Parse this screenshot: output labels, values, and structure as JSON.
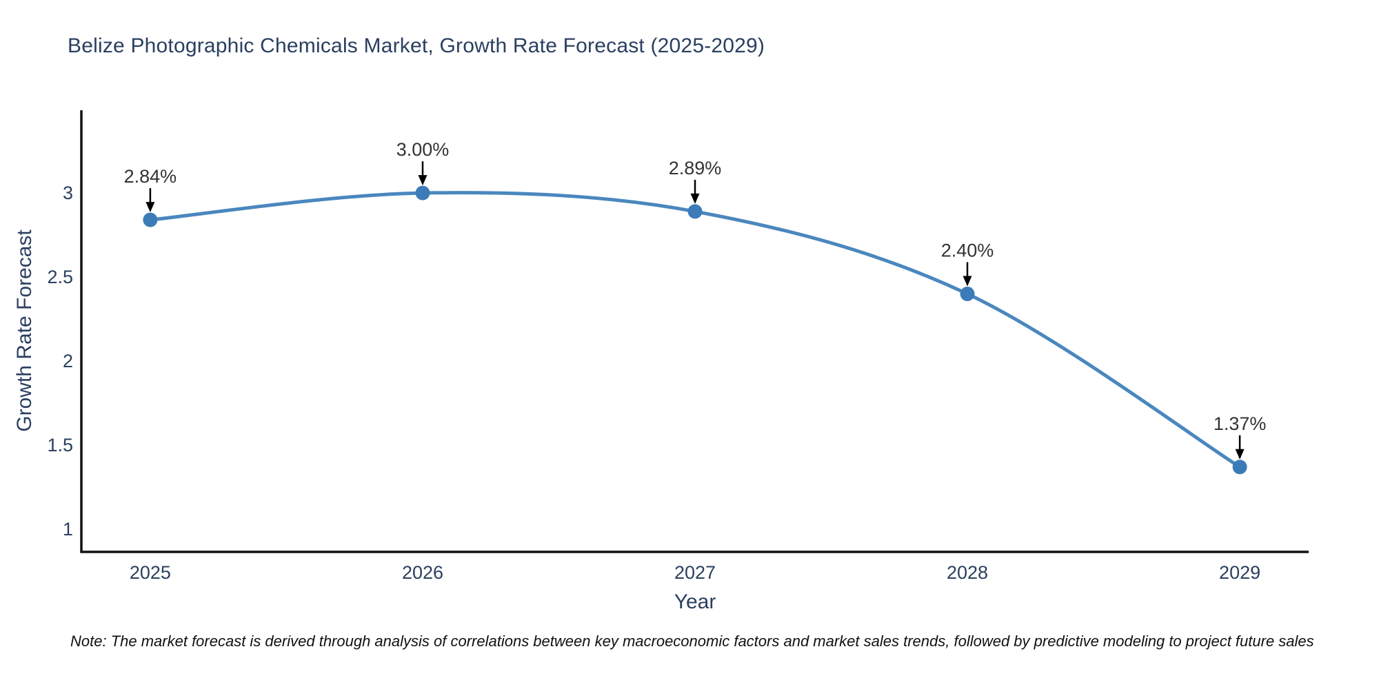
{
  "chart_data": {
    "type": "line",
    "title": "Belize Photographic Chemicals Market, Growth Rate Forecast (2025-2029)",
    "xlabel": "Year",
    "ylabel": "Growth Rate Forecast",
    "x": [
      2025,
      2026,
      2027,
      2028,
      2029
    ],
    "series": [
      {
        "name": "Growth Rate Forecast",
        "values": [
          2.84,
          3.0,
          2.89,
          2.4,
          1.37
        ]
      }
    ],
    "point_labels": [
      "2.84%",
      "3.00%",
      "2.89%",
      "2.40%",
      "1.37%"
    ],
    "xtick_labels": [
      "2025",
      "2026",
      "2027",
      "2028",
      "2029"
    ],
    "yticks": [
      1,
      1.5,
      2,
      2.5,
      3
    ],
    "ytick_labels": [
      "1",
      "1.5",
      "2",
      "2.5",
      "3"
    ],
    "xlim": [
      2024.747,
      2029.253
    ],
    "ylim": [
      0.865,
      3.492
    ],
    "grid": false,
    "legend": "none",
    "line_shape": "spline",
    "note": "Note: The market forecast is derived through analysis of correlations between key macroeconomic factors and market sales trends, followed by predictive modeling to project future sales",
    "colors": {
      "line": "#4a87be",
      "marker": "#3b7cb8",
      "axis": "#111111",
      "title_text": "#2a3f5f",
      "tick_text": "#2a3f5f",
      "annotation_text": "#333333",
      "arrow": "#000000",
      "note_text": "#111111"
    }
  }
}
